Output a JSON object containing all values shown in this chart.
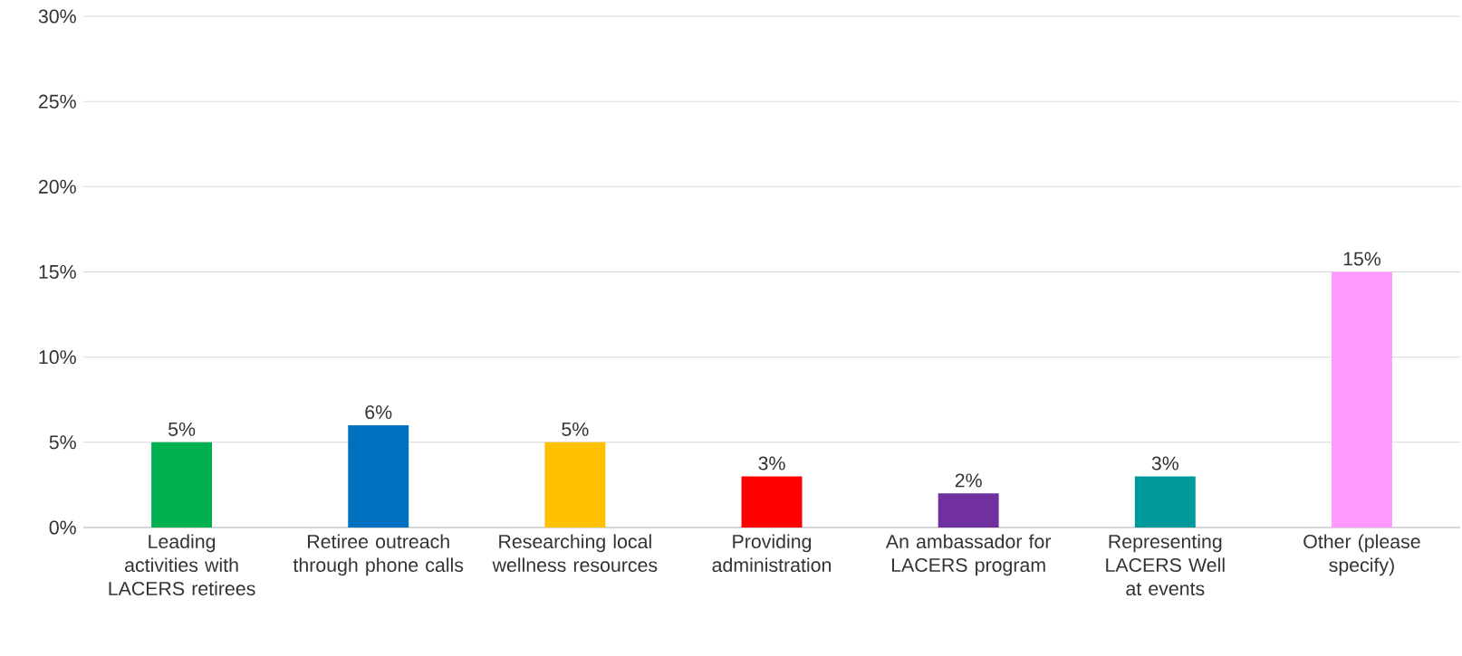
{
  "chart_data": {
    "type": "bar",
    "categories": [
      "Leading activities with LACERS retirees",
      "Retiree outreach through phone calls",
      "Researching local wellness resources",
      "Providing administration",
      "An ambassador for LACERS program",
      "Representing LACERS Well at events",
      "Other (please specify)"
    ],
    "values": [
      5,
      6,
      5,
      3,
      2,
      3,
      15
    ],
    "colors": [
      "#00b050",
      "#0070c0",
      "#ffc000",
      "#ff0000",
      "#7030a0",
      "#009999",
      "#ff99ff"
    ],
    "value_labels": [
      "5%",
      "6%",
      "5%",
      "3%",
      "2%",
      "3%",
      "15%"
    ],
    "ylim": [
      0,
      30
    ],
    "yticks": [
      {
        "value": 0,
        "label": "0%"
      },
      {
        "value": 5,
        "label": "5%"
      },
      {
        "value": 10,
        "label": "10%"
      },
      {
        "value": 15,
        "label": "15%"
      },
      {
        "value": 20,
        "label": "20%"
      },
      {
        "value": 25,
        "label": "25%"
      },
      {
        "value": 30,
        "label": "30%"
      }
    ],
    "grid": "y"
  }
}
